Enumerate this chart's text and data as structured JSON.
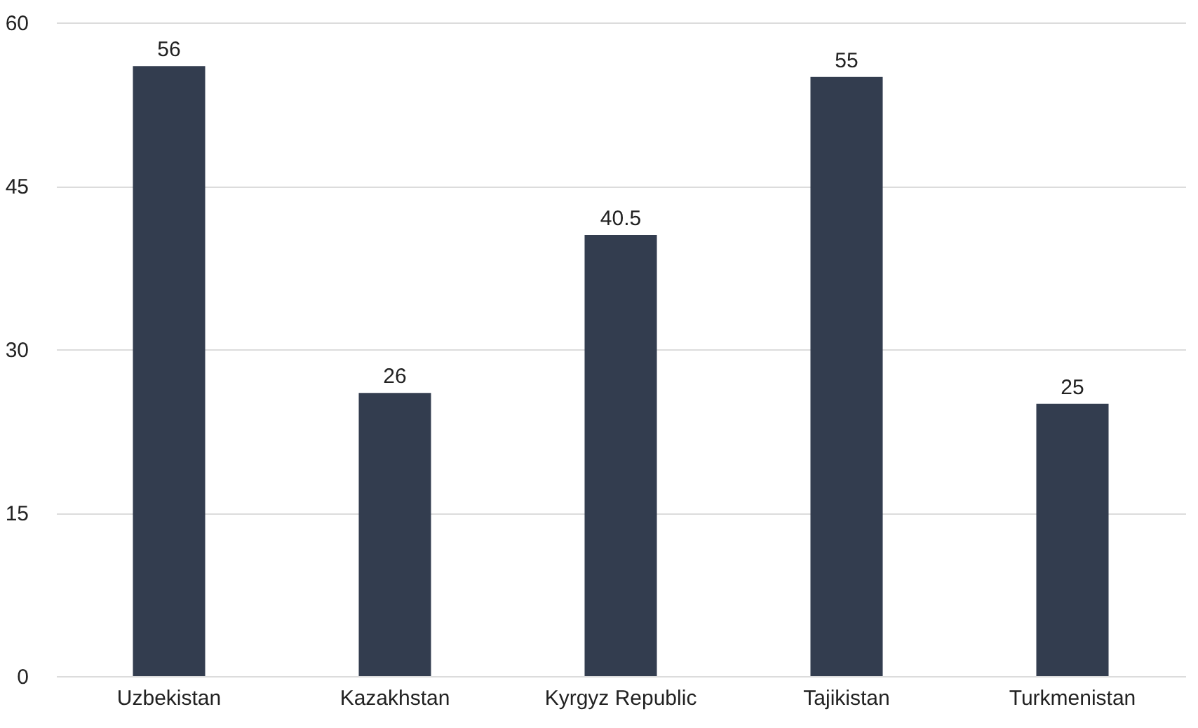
{
  "chart_data": {
    "type": "bar",
    "categories": [
      "Uzbekistan",
      "Kazakhstan",
      "Kyrgyz Republic",
      "Tajikistan",
      "Turkmenistan"
    ],
    "values": [
      56,
      26,
      40.5,
      55,
      25
    ],
    "color": "#333d4f",
    "ylim": [
      0,
      60
    ],
    "yticks": [
      0,
      15,
      30,
      45,
      60
    ],
    "grid": "y",
    "data_labels": true
  }
}
